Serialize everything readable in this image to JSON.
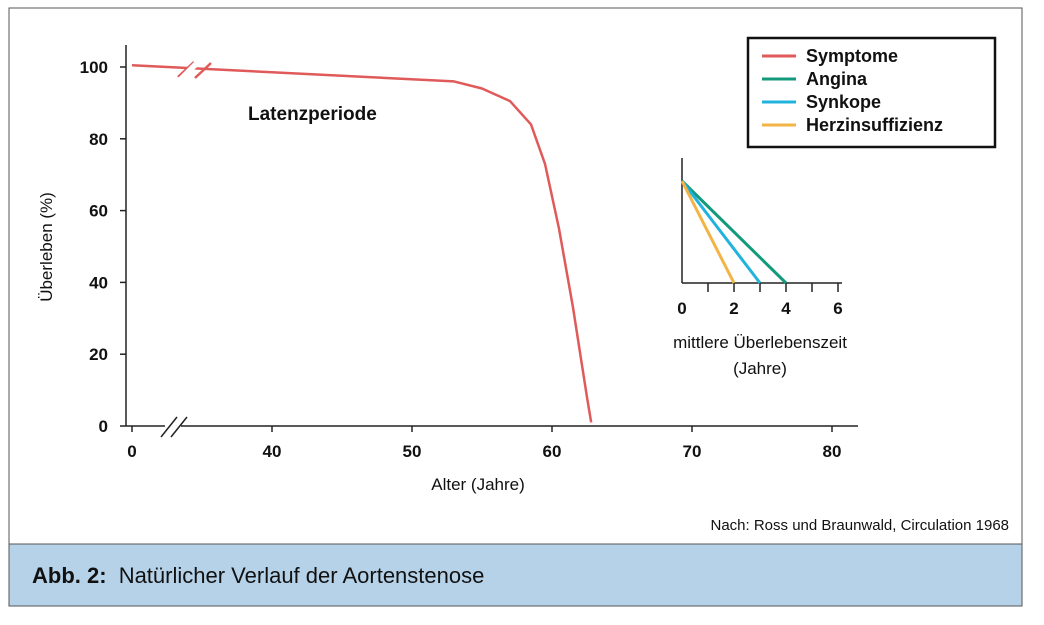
{
  "chart_data": {
    "type": "line",
    "xlabel": "Alter (Jahre)",
    "ylabel": "Überleben (%)",
    "x_ticks": [
      "0",
      "40",
      "50",
      "60",
      "70",
      "80"
    ],
    "y_ticks": [
      "0",
      "20",
      "40",
      "60",
      "80",
      "100"
    ],
    "ylim": [
      0,
      100
    ],
    "axis_breaks": "x-axis broken between 0 and 40",
    "annotation": "Latenzperiode",
    "series": [
      {
        "name": "Symptome",
        "color": "#e05a5a",
        "points": [
          [
            0,
            100.5
          ],
          [
            53,
            96
          ],
          [
            55,
            94
          ],
          [
            57,
            90.5
          ],
          [
            58.5,
            84
          ],
          [
            59.5,
            73
          ],
          [
            60.5,
            55
          ],
          [
            61.5,
            33
          ],
          [
            62.5,
            8
          ],
          [
            62.8,
            1
          ]
        ]
      }
    ],
    "inset": {
      "xlabel_line1": "mittlere Überlebenszeit",
      "xlabel_line2": "(Jahre)",
      "x_ticks": [
        "0",
        "2",
        "4",
        "6"
      ],
      "xlim": [
        0,
        6
      ],
      "series": [
        {
          "name": "Angina",
          "color": "#139a7c",
          "start": 0,
          "end": 4
        },
        {
          "name": "Synkope",
          "color": "#21b3dd",
          "start": 0,
          "end": 3
        },
        {
          "name": "Herzinsuffizienz",
          "color": "#f2b445",
          "start": 0,
          "end": 2
        }
      ]
    },
    "legend": {
      "position": "top-right",
      "entries": [
        {
          "label": "Symptome",
          "color": "#e05a5a"
        },
        {
          "label": "Angina",
          "color": "#139a7c"
        },
        {
          "label": "Synkope",
          "color": "#21b3dd"
        },
        {
          "label": "Herzinsuffizienz",
          "color": "#f2b445"
        }
      ]
    }
  },
  "source": "Nach: Ross und Braunwald, Circulation 1968",
  "caption": {
    "label": "Abb. 2:",
    "text": "Natürlicher Verlauf der Aortenstenose",
    "background": "#b5d2e8"
  }
}
